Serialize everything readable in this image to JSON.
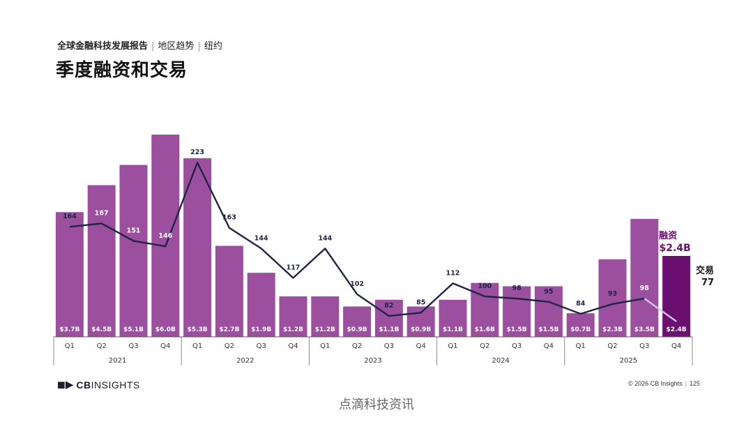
{
  "header": {
    "report": "全球金融科技发展报告",
    "section": "地区趋势",
    "city": "纽约",
    "title": "季度融资和交易"
  },
  "colors": {
    "bar": "#9b4f9e",
    "bar_highlight": "#6b1070",
    "line": "#1f2447",
    "line_highlight": "#cfc6e3",
    "funding_label": "#6b1070"
  },
  "chart_data": {
    "type": "bar",
    "title": "季度融资和交易",
    "categories": [
      "Q1",
      "Q2",
      "Q3",
      "Q4",
      "Q1",
      "Q2",
      "Q3",
      "Q4",
      "Q1",
      "Q2",
      "Q3",
      "Q4",
      "Q1",
      "Q2",
      "Q3",
      "Q4",
      "Q1",
      "Q2",
      "Q3",
      "Q4"
    ],
    "years": [
      "2021",
      "2022",
      "2023",
      "2024",
      "2025"
    ],
    "series": [
      {
        "name": "融资",
        "kind": "bar",
        "values": [
          3.7,
          4.5,
          5.1,
          6.0,
          5.3,
          2.7,
          1.9,
          1.2,
          1.2,
          0.9,
          1.1,
          0.9,
          1.1,
          1.6,
          1.5,
          1.5,
          0.7,
          2.3,
          3.5,
          2.4
        ],
        "labels": [
          "$3.7B",
          "$4.5B",
          "$5.1B",
          "$6.0B",
          "$5.3B",
          "$2.7B",
          "$1.9B",
          "$1.2B",
          "$1.2B",
          "$0.9B",
          "$1.1B",
          "$0.9B",
          "$1.1B",
          "$1.6B",
          "$1.5B",
          "$1.5B",
          "$0.7B",
          "$2.3B",
          "$3.5B",
          "$2.4B"
        ]
      },
      {
        "name": "交易",
        "kind": "line",
        "values": [
          164,
          167,
          151,
          146,
          223,
          163,
          144,
          117,
          144,
          102,
          82,
          85,
          112,
          100,
          98,
          95,
          84,
          93,
          98,
          77
        ]
      }
    ],
    "callouts": {
      "funding_name": "融资",
      "funding_value": "$2.4B",
      "deals_name": "交易",
      "deals_value": "77"
    },
    "ylim_funding": [
      0,
      6.0
    ],
    "ylim_deals": [
      0,
      240
    ],
    "legend": "none",
    "grid": false
  },
  "footer": {
    "logo_cb": "CB",
    "logo_text": "INSIGHTS",
    "copyright": "© 2026 CB Insights",
    "page": "125"
  },
  "watermark": "点滴科技资讯"
}
